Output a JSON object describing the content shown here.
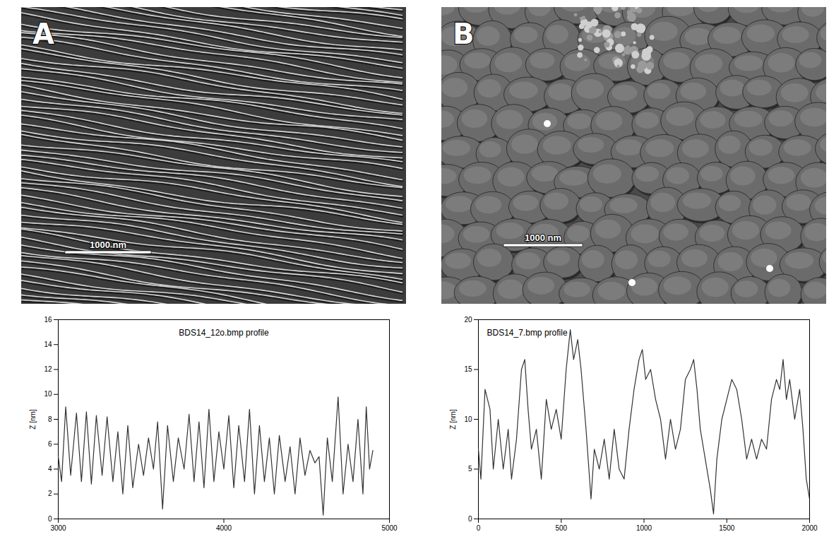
{
  "chart_data": [
    {
      "type": "line",
      "panel_label": "A",
      "scale_bar_label": "1000 nm",
      "title": "BDS14_12o.bmp profile",
      "y_label": "Z [nm]",
      "color": "#333333",
      "xlim": [
        3000,
        5000
      ],
      "xticks": [
        3000,
        4000,
        5000
      ],
      "ylim": [
        0,
        16
      ],
      "yticks": [
        0,
        2,
        4,
        6,
        8,
        10,
        12,
        14,
        16
      ],
      "x": [
        3000,
        3020,
        3045,
        3075,
        3110,
        3140,
        3170,
        3200,
        3230,
        3265,
        3295,
        3330,
        3360,
        3390,
        3420,
        3450,
        3485,
        3515,
        3545,
        3575,
        3600,
        3630,
        3660,
        3695,
        3725,
        3760,
        3790,
        3820,
        3850,
        3880,
        3910,
        3940,
        3970,
        4000,
        4030,
        4060,
        4090,
        4125,
        4155,
        4185,
        4215,
        4245,
        4275,
        4305,
        4335,
        4370,
        4400,
        4430,
        4460,
        4490,
        4520,
        4550,
        4575,
        4600,
        4625,
        4655,
        4690,
        4720,
        4750,
        4780,
        4810,
        4840,
        4860,
        4880,
        4900
      ],
      "values": [
        5,
        3,
        9,
        3.5,
        8.5,
        3,
        8.6,
        2.8,
        8.3,
        3.5,
        8.2,
        3,
        7,
        2,
        7.5,
        2.5,
        6,
        3.5,
        6.5,
        4,
        7.8,
        0.8,
        7.5,
        3,
        6.5,
        4,
        8.4,
        3,
        7.8,
        2.5,
        8.8,
        3,
        7,
        4,
        8.3,
        2.5,
        7.5,
        3,
        8.8,
        2,
        7.5,
        3,
        6.5,
        2,
        6.7,
        3,
        5.8,
        2,
        6.5,
        3.5,
        5.5,
        4.5,
        5,
        0.3,
        6.5,
        3,
        9.8,
        2,
        6,
        3,
        8,
        2,
        9,
        4,
        5.5
      ]
    },
    {
      "type": "line",
      "panel_label": "B",
      "scale_bar_label": "1000 nm",
      "title": "BDS14_7.bmp profile",
      "y_label": "Z [nm]",
      "color": "#333333",
      "xlim": [
        0,
        2000
      ],
      "xticks": [
        0,
        500,
        1000,
        1500,
        2000
      ],
      "ylim": [
        0,
        20
      ],
      "yticks": [
        0,
        5,
        10,
        15,
        20
      ],
      "x": [
        0,
        15,
        40,
        70,
        90,
        120,
        150,
        180,
        200,
        230,
        260,
        280,
        300,
        320,
        350,
        380,
        410,
        440,
        470,
        500,
        530,
        555,
        575,
        600,
        620,
        650,
        680,
        700,
        730,
        760,
        790,
        820,
        850,
        880,
        910,
        940,
        970,
        990,
        1010,
        1040,
        1070,
        1100,
        1130,
        1160,
        1190,
        1220,
        1250,
        1280,
        1300,
        1320,
        1340,
        1370,
        1400,
        1420,
        1440,
        1470,
        1500,
        1530,
        1560,
        1590,
        1620,
        1650,
        1680,
        1710,
        1740,
        1770,
        1800,
        1820,
        1840,
        1860,
        1880,
        1910,
        1940,
        1960,
        1980,
        2000
      ],
      "values": [
        7,
        4,
        13,
        11,
        5,
        10,
        5,
        9,
        4,
        8,
        15,
        16,
        11,
        7,
        9,
        4,
        12,
        9,
        11,
        8,
        15,
        19,
        16,
        18,
        15,
        9,
        2,
        7,
        5,
        8,
        4,
        9,
        5,
        4,
        9,
        13,
        16,
        17,
        14,
        15,
        12,
        10,
        6,
        10,
        7,
        9,
        14,
        15,
        16,
        13,
        9,
        6,
        3,
        0.5,
        6,
        10,
        12,
        14,
        13,
        10,
        6,
        8,
        6,
        8,
        7,
        12,
        14,
        13,
        16,
        12,
        14,
        10,
        13,
        9,
        4,
        2
      ]
    }
  ]
}
